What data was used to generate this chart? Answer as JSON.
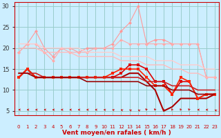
{
  "xlabel": "Vent moyen/en rafales ( km/h )",
  "bg_color": "#cceeff",
  "grid_color": "#99cccc",
  "xlim": [
    -0.5,
    23.5
  ],
  "ylim": [
    4,
    31
  ],
  "yticks": [
    5,
    10,
    15,
    20,
    25,
    30
  ],
  "xticks": [
    0,
    1,
    2,
    3,
    4,
    5,
    6,
    7,
    8,
    9,
    10,
    11,
    12,
    13,
    14,
    15,
    16,
    17,
    18,
    19,
    20,
    21,
    22,
    23
  ],
  "lines": [
    {
      "y": [
        19,
        21,
        24,
        20,
        18,
        20,
        20,
        19,
        20,
        20,
        20,
        21,
        24,
        26,
        30,
        21,
        22,
        22,
        21,
        21,
        21,
        21,
        13,
        13
      ],
      "color": "#ff9999",
      "marker": "D",
      "lw": 0.8,
      "ms": 2.5
    },
    {
      "y": [
        19,
        21,
        21,
        19,
        17,
        20,
        19,
        19,
        19,
        20,
        20,
        20,
        22,
        21,
        21,
        21,
        21,
        21,
        21,
        21,
        21,
        21,
        13,
        13
      ],
      "color": "#ffaaaa",
      "marker": "D",
      "lw": 0.8,
      "ms": 2.5
    },
    {
      "y": [
        20,
        20,
        20,
        19,
        19,
        19,
        19,
        18,
        18,
        18,
        18,
        18,
        17,
        17,
        17,
        16,
        16,
        16,
        15,
        15,
        14,
        14,
        13,
        13
      ],
      "color": "#ffbbbb",
      "marker": null,
      "lw": 1.0,
      "ms": 0
    },
    {
      "y": [
        21,
        21,
        21,
        20,
        20,
        20,
        20,
        20,
        19,
        19,
        19,
        19,
        18,
        18,
        18,
        18,
        17,
        17,
        17,
        16,
        16,
        16,
        15,
        15
      ],
      "color": "#ffcccc",
      "marker": null,
      "lw": 1.0,
      "ms": 0
    },
    {
      "y": [
        13,
        15,
        13,
        13,
        13,
        13,
        13,
        13,
        13,
        13,
        13,
        13,
        14,
        16,
        16,
        15,
        12,
        12,
        9,
        12,
        12,
        8,
        9,
        9
      ],
      "color": "#dd0000",
      "marker": "s",
      "lw": 1.2,
      "ms": 2.5
    },
    {
      "y": [
        13,
        15,
        13,
        13,
        13,
        13,
        13,
        13,
        13,
        13,
        13,
        13,
        13,
        14,
        14,
        12,
        10,
        5,
        6,
        8,
        8,
        8,
        8,
        9
      ],
      "color": "#aa0000",
      "marker": null,
      "lw": 1.5,
      "ms": 0
    },
    {
      "y": [
        13,
        15,
        13,
        13,
        13,
        13,
        13,
        13,
        13,
        13,
        13,
        14,
        15,
        15,
        15,
        13,
        11,
        11,
        9,
        13,
        12,
        8,
        9,
        9
      ],
      "color": "#ff2200",
      "marker": "s",
      "lw": 1.2,
      "ms": 2.5
    },
    {
      "y": [
        14,
        14,
        14,
        13,
        13,
        13,
        13,
        13,
        13,
        13,
        13,
        13,
        13,
        13,
        13,
        12,
        12,
        12,
        11,
        11,
        11,
        10,
        10,
        10
      ],
      "color": "#cc2222",
      "marker": null,
      "lw": 1.2,
      "ms": 0
    },
    {
      "y": [
        14,
        14,
        13,
        13,
        13,
        13,
        13,
        13,
        12,
        12,
        12,
        12,
        12,
        12,
        12,
        11,
        11,
        11,
        10,
        10,
        10,
        9,
        9,
        9
      ],
      "color": "#990000",
      "marker": null,
      "lw": 1.2,
      "ms": 0
    }
  ],
  "arrow_directions": [
    270,
    270,
    270,
    270,
    270,
    270,
    270,
    270,
    270,
    270,
    260,
    250,
    240,
    230,
    225,
    215,
    210,
    200,
    200,
    200,
    210,
    270,
    270,
    225
  ]
}
